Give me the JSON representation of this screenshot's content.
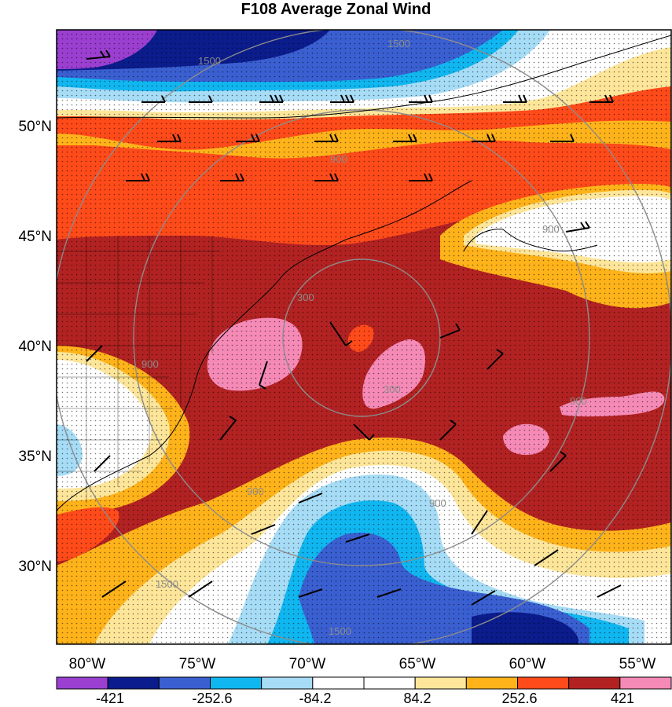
{
  "title": "F108 Average Zonal Wind",
  "latitude_labels": [
    "50°N",
    "45°N",
    "40°N",
    "35°N",
    "30°N"
  ],
  "longitude_labels": [
    "80°W",
    "75°W",
    "70°W",
    "65°W",
    "60°W",
    "55°W"
  ],
  "contour_labels": [
    "1500",
    "1500",
    "900",
    "900",
    "300",
    "300",
    "900",
    "900",
    "900",
    "900",
    "1500",
    "1500"
  ],
  "colorbar": {
    "tick_labels": [
      "-421",
      "-252.6",
      "-84.2",
      "84.2",
      "252.6",
      "421"
    ],
    "colors": [
      "#9b3fd1",
      "#0b1c8c",
      "#3a5fd1",
      "#10b6f0",
      "#a6dcf6",
      "#ffffff",
      "#ffffff",
      "#fde69a",
      "#ffb31a",
      "#ff4a1a",
      "#b22222",
      "#f58ab6"
    ]
  },
  "palette": {
    "dark_red": "#b22222",
    "red_orange": "#ff4a1a",
    "orange": "#ffb31a",
    "light_yellow": "#fde69a",
    "pink": "#f58ab6",
    "light_blue": "#a6dcf6",
    "cyan": "#10b6f0",
    "medium_blue": "#3a5fd1",
    "navy": "#0b1c8c",
    "purple": "#9b3fd1",
    "range_ring": "#8c8c8c"
  }
}
